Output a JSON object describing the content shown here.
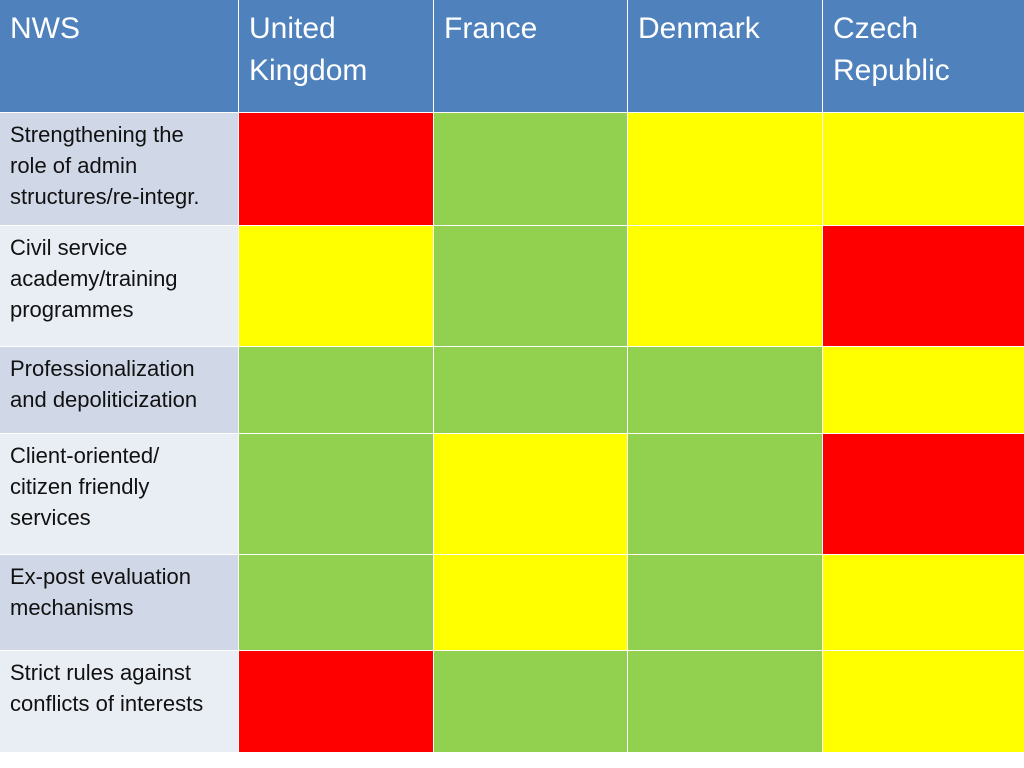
{
  "table": {
    "corner_label": "NWS",
    "columns": [
      "United Kingdom",
      "France",
      "Denmark",
      "Czech Republic"
    ],
    "column_lines": [
      [
        "United",
        "Kingdom"
      ],
      [
        "France"
      ],
      [
        "Denmark"
      ],
      [
        "Czech",
        "Republic"
      ]
    ],
    "rows": [
      {
        "label": "Strengthening the role of admin structures/re-integr.",
        "label_lines": [
          "Strengthening the",
          "role of admin",
          "structures/re-integr."
        ],
        "statuses": [
          "red",
          "green",
          "yellow",
          "yellow"
        ]
      },
      {
        "label": "Civil service academy/training programmes",
        "label_lines": [
          "Civil service",
          "academy/training",
          "programmes"
        ],
        "statuses": [
          "yellow",
          "green",
          "yellow",
          "red"
        ]
      },
      {
        "label": "Professionalization and depoliticization",
        "label_lines": [
          "Professionalization",
          "and depoliticization"
        ],
        "statuses": [
          "green",
          "green",
          "green",
          "yellow"
        ]
      },
      {
        "label": "Client-oriented/ citizen friendly services",
        "label_lines": [
          "Client-oriented/",
          "citizen friendly",
          "services"
        ],
        "statuses": [
          "green",
          "yellow",
          "green",
          "red"
        ]
      },
      {
        "label": "Ex-post evaluation mechanisms",
        "label_lines": [
          "Ex-post evaluation",
          "mechanisms"
        ],
        "statuses": [
          "green",
          "yellow",
          "green",
          "yellow"
        ]
      },
      {
        "label": "Strict rules against conflicts of interests",
        "label_lines": [
          "Strict rules against",
          "conflicts of interests"
        ],
        "statuses": [
          "red",
          "green",
          "green",
          "yellow"
        ]
      }
    ]
  },
  "colors": {
    "header_bg": "#4f81bd",
    "row_label_odd": "#d0d8e8",
    "row_label_even": "#e9edf4",
    "red": "#ff0000",
    "green": "#92d050",
    "yellow": "#ffff00"
  }
}
